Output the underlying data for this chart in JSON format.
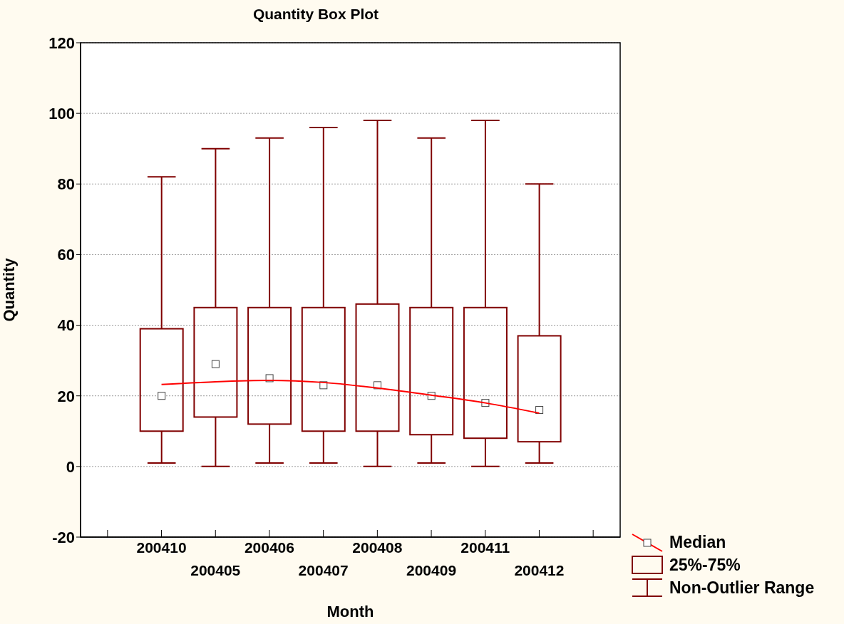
{
  "chart_data": {
    "type": "box",
    "title": "Quantity Box Plot",
    "xlabel": "Month",
    "ylabel": "Quantity",
    "categories": [
      "200410",
      "200405",
      "200406",
      "200407",
      "200408",
      "200409",
      "200411",
      "200412"
    ],
    "ylim": [
      -20,
      120
    ],
    "yticks": [
      -20,
      0,
      20,
      40,
      60,
      80,
      100,
      120
    ],
    "grid": "y",
    "legend": "bottom right",
    "annotations": [
      "25%-75%",
      "Non-Outlier Range"
    ],
    "series": [
      {
        "color": "#800000",
        "boxes": [
          {
            "low": 1,
            "q1": 10,
            "median": 20,
            "q3": 39,
            "high": 82
          },
          {
            "low": 0,
            "q1": 14,
            "median": 29,
            "q3": 45,
            "high": 90
          },
          {
            "low": 1,
            "q1": 12,
            "median": 25,
            "q3": 45,
            "high": 93
          },
          {
            "low": 1,
            "q1": 10,
            "median": 23,
            "q3": 45,
            "high": 96
          },
          {
            "low": 0,
            "q1": 10,
            "median": 23,
            "q3": 46,
            "high": 98
          },
          {
            "low": 1,
            "q1": 9,
            "median": 20,
            "q3": 45,
            "high": 93
          },
          {
            "low": 0,
            "q1": 8,
            "median": 18,
            "q3": 45,
            "high": 98
          },
          {
            "low": 1,
            "q1": 7,
            "median": 16,
            "q3": 37,
            "high": 80
          }
        ]
      },
      {
        "type": "line",
        "name": "Median",
        "color": "#ff0000",
        "values": [
          23.2,
          24,
          24.4,
          23.8,
          22.2,
          20.2,
          18,
          15.1
        ]
      }
    ]
  }
}
